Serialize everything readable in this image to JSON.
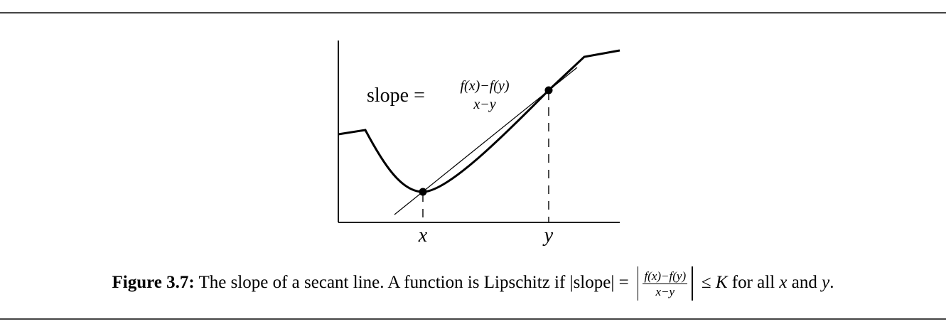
{
  "diagram": {
    "slope_label": "slope =",
    "slope_numerator": "f(x)−f(y)",
    "slope_denominator": "x−y",
    "x_label": "x",
    "y_label": "y"
  },
  "caption": {
    "figure_label": "Figure 3.7:",
    "text_1": " The slope of a secant line. A function is Lipschitz if |slope| = ",
    "frac_numerator": "f(x)−f(y)",
    "frac_denominator": "x−y",
    "text_2": " ≤ ",
    "K": "K",
    "text_3": " for all ",
    "x": "x",
    "text_4": " and ",
    "y": "y",
    "text_5": "."
  }
}
